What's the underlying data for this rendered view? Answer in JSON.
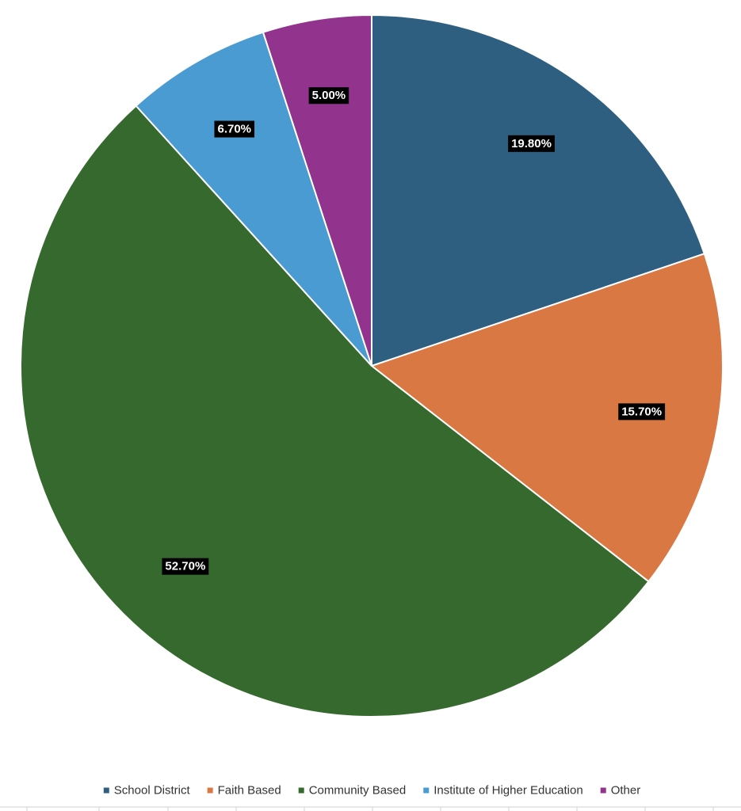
{
  "chart_data": {
    "type": "pie",
    "title": "",
    "start_angle_deg": 0,
    "direction": "clockwise",
    "legend_position": "bottom",
    "data_labels": true,
    "slices": [
      {
        "name": "School District",
        "value": 19.8,
        "label": "19.80%",
        "color": "#2e5f80"
      },
      {
        "name": "Faith Based",
        "value": 15.7,
        "label": "15.70%",
        "color": "#d97843"
      },
      {
        "name": "Community Based",
        "value": 52.7,
        "label": "52.70%",
        "color": "#36692e"
      },
      {
        "name": "Institute of Higher Education",
        "value": 6.7,
        "label": "6.70%",
        "color": "#4a9bd1"
      },
      {
        "name": "Other",
        "value": 5.0,
        "label": "5.00%",
        "color": "#92348d"
      }
    ]
  }
}
